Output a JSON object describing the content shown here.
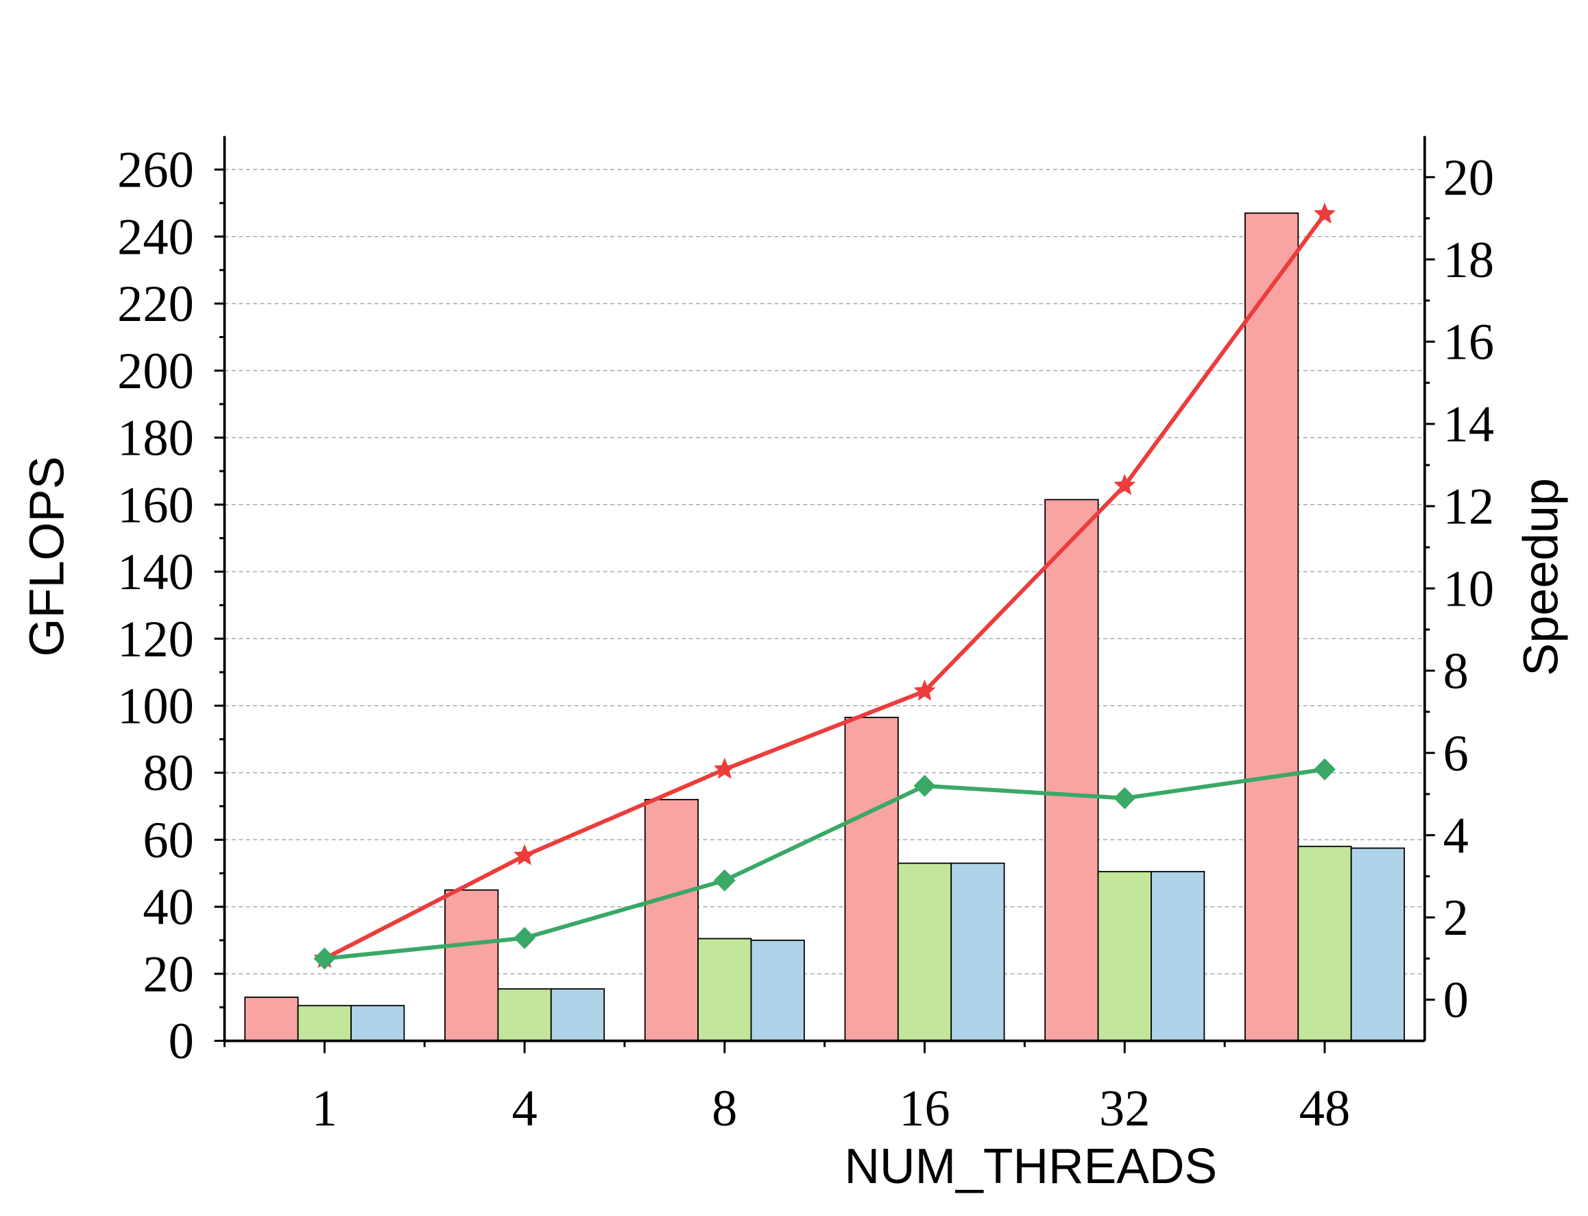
{
  "chart_data": {
    "type": "bar",
    "x_label": "NUM_THREADS",
    "y_label": "GFLOPS",
    "y2_label": "Speedup",
    "categories": [
      "1",
      "4",
      "8",
      "16",
      "32",
      "48"
    ],
    "series": [
      {
        "color": "#f9a3a3",
        "values": [
          13,
          45,
          72,
          96.5,
          161.5,
          247
        ]
      },
      {
        "color": "#c2e69a",
        "values": [
          10.5,
          15.5,
          30.5,
          53,
          50.5,
          58
        ]
      },
      {
        "color": "#afd3e8",
        "values": [
          10.5,
          15.5,
          30,
          53,
          50.5,
          57.5
        ]
      },
      {
        "type": "line",
        "axis": "y2",
        "marker": "star",
        "color": "#ec3c3c",
        "values": [
          1.0,
          3.5,
          5.6,
          7.5,
          12.5,
          19.1
        ]
      },
      {
        "type": "line",
        "axis": "y2",
        "marker": "diamond",
        "color": "#3aa866",
        "values": [
          1.0,
          1.5,
          2.9,
          5.2,
          4.9,
          5.6
        ]
      }
    ],
    "ylim": [
      0,
      270
    ],
    "yticks": [
      0,
      20,
      40,
      60,
      80,
      100,
      120,
      140,
      160,
      180,
      200,
      220,
      240,
      260
    ],
    "y2lim": [
      -1,
      21
    ],
    "y2ticks": [
      0,
      2,
      4,
      6,
      8,
      10,
      12,
      14,
      16,
      18,
      20
    ],
    "grid": true
  }
}
